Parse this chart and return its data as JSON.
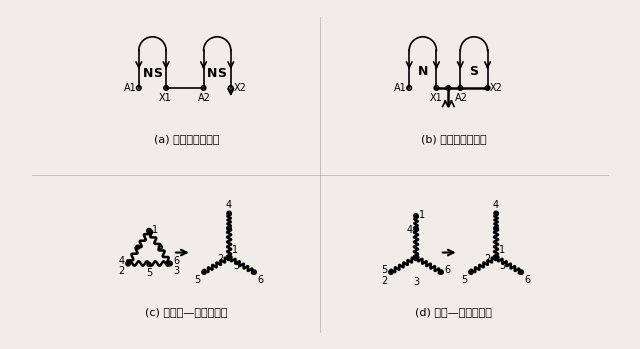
{
  "bg_color": "#f0ede8",
  "label_a": "(a) 四极绕组展开图",
  "label_b": "(b) 二极绕组展开图",
  "label_c": "(c) 三角形—双星形转换",
  "label_d": "(d) 星形—双星形转换"
}
